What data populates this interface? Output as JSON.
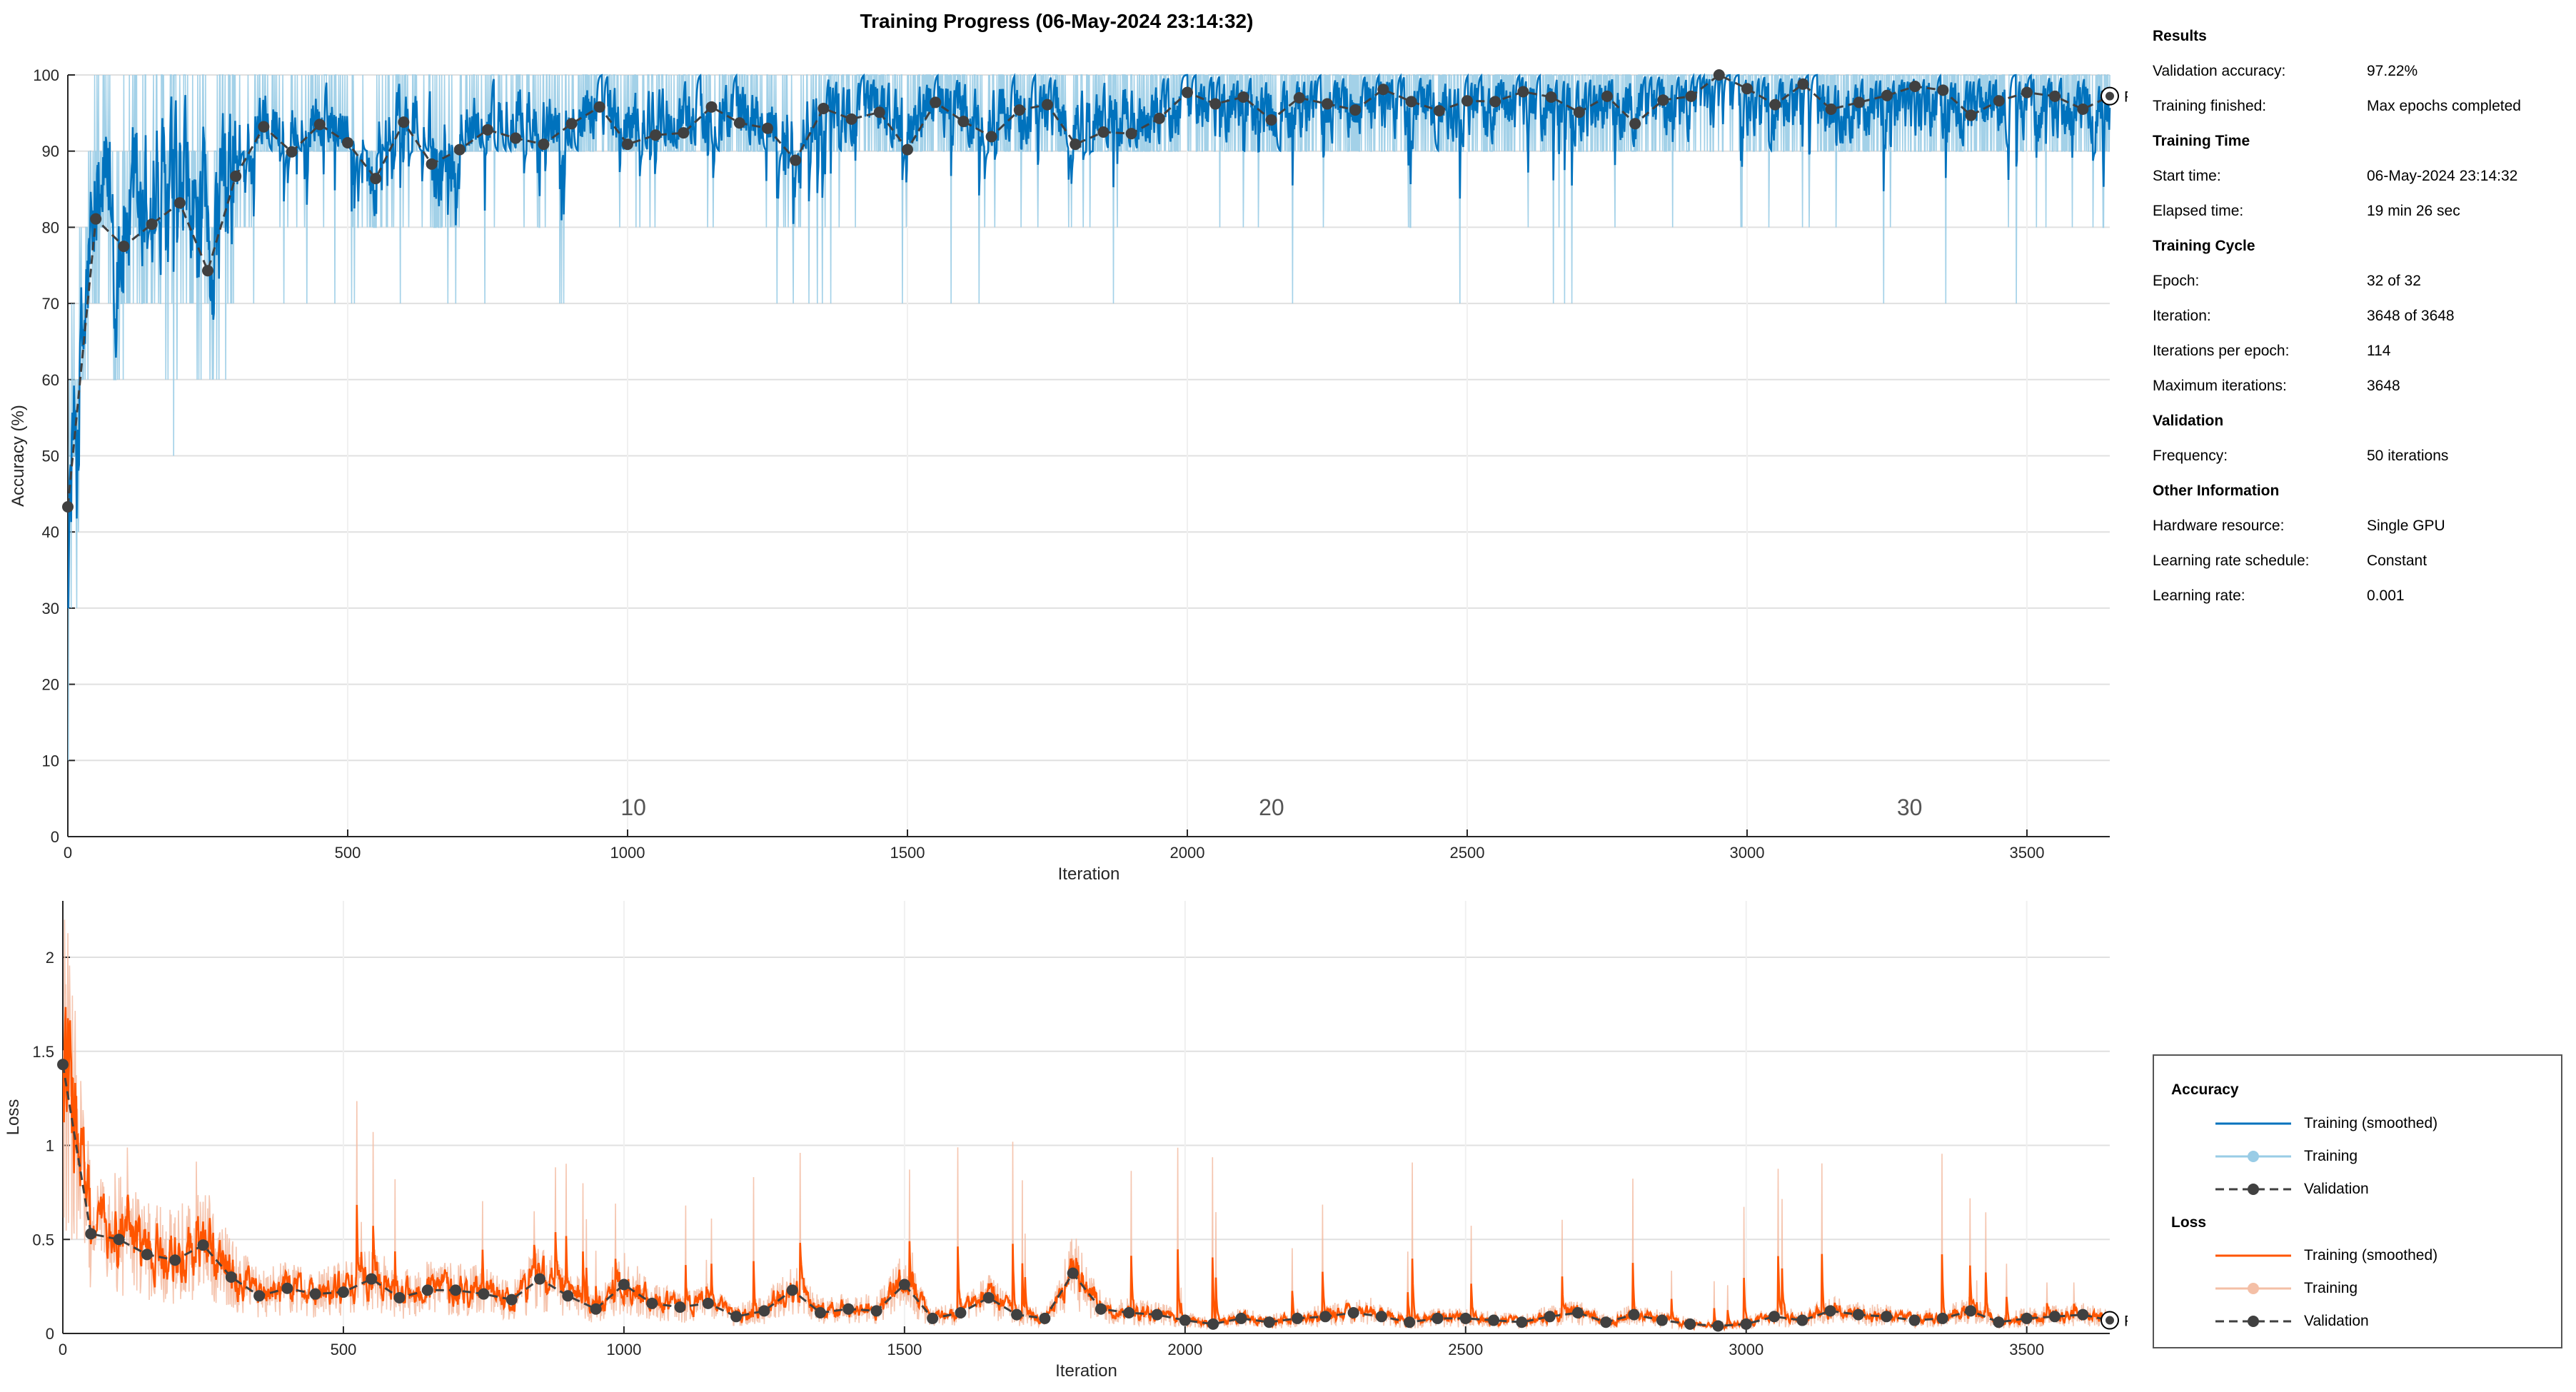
{
  "title": "Training Progress (06-May-2024 23:14:32)",
  "colors": {
    "acc_smoothed": "#0072BD",
    "acc_raw": "#99CCE6",
    "validation": "#404040",
    "loss_smoothed": "#FF5500",
    "loss_raw": "#F4BFA6"
  },
  "chart_data": [
    {
      "type": "line",
      "name": "accuracy-plot",
      "xlabel": "Iteration",
      "ylabel": "Accuracy (%)",
      "xlim": [
        0,
        3648
      ],
      "ylim": [
        0,
        100
      ],
      "xticks": [
        0,
        500,
        1000,
        1500,
        2000,
        2500,
        3000,
        3500
      ],
      "yticks": [
        0,
        10,
        20,
        30,
        40,
        50,
        60,
        70,
        80,
        90,
        100
      ],
      "grid": true,
      "epoch_labels": [
        {
          "epoch": "10",
          "x": 1026
        },
        {
          "epoch": "20",
          "x": 2166
        },
        {
          "epoch": "30",
          "x": 3306
        }
      ],
      "final_label": "Final",
      "final_value": 97.22,
      "validation": {
        "name": "Validation",
        "x": [
          0,
          50,
          100,
          150,
          200,
          250,
          300,
          350,
          400,
          450,
          500,
          550,
          600,
          650,
          700,
          750,
          800,
          850,
          900,
          950,
          1000,
          1050,
          1100,
          1150,
          1200,
          1250,
          1300,
          1350,
          1400,
          1450,
          1500,
          1550,
          1600,
          1650,
          1700,
          1750,
          1800,
          1850,
          1900,
          1950,
          2000,
          2050,
          2100,
          2150,
          2200,
          2250,
          2300,
          2350,
          2400,
          2450,
          2500,
          2550,
          2600,
          2650,
          2700,
          2750,
          2800,
          2850,
          2900,
          2950,
          3000,
          3050,
          3100,
          3150,
          3200,
          3250,
          3300,
          3350,
          3400,
          3450,
          3500,
          3550,
          3600,
          3648
        ],
        "y": [
          43.3,
          81.1,
          77.5,
          80.4,
          83.2,
          74.3,
          86.7,
          93.2,
          89.9,
          93.5,
          91.1,
          86.4,
          93.8,
          88.3,
          90.2,
          92.8,
          91.7,
          90.9,
          93.6,
          95.8,
          90.9,
          92.1,
          92.4,
          95.8,
          93.7,
          93.0,
          88.8,
          95.6,
          94.2,
          95.1,
          90.2,
          96.4,
          93.9,
          91.9,
          95.4,
          96.1,
          90.9,
          92.5,
          92.3,
          94.3,
          97.7,
          96.2,
          97.1,
          94.1,
          97.0,
          96.2,
          95.4,
          98.1,
          96.5,
          95.3,
          96.6,
          96.5,
          97.8,
          97.1,
          95.1,
          97.2,
          93.6,
          96.7,
          97.2,
          100.0,
          98.2,
          96.1,
          98.8,
          95.5,
          96.4,
          97.3,
          98.5,
          98.0,
          94.7,
          96.6,
          97.7,
          97.2,
          95.5,
          97.22
        ]
      }
    },
    {
      "type": "line",
      "name": "loss-plot",
      "xlabel": "Iteration",
      "ylabel": "Loss",
      "xlim": [
        0,
        3648
      ],
      "ylim": [
        0,
        2.3
      ],
      "xticks": [
        0,
        500,
        1000,
        1500,
        2000,
        2500,
        3000,
        3500
      ],
      "yticks": [
        0,
        0.5,
        1,
        1.5,
        2
      ],
      "grid": true,
      "final_label": "Final",
      "final_value": 0.07,
      "validation": {
        "name": "Validation",
        "x": [
          0,
          50,
          100,
          150,
          200,
          250,
          300,
          350,
          400,
          450,
          500,
          550,
          600,
          650,
          700,
          750,
          800,
          850,
          900,
          950,
          1000,
          1050,
          1100,
          1150,
          1200,
          1250,
          1300,
          1350,
          1400,
          1450,
          1500,
          1550,
          1600,
          1650,
          1700,
          1750,
          1800,
          1850,
          1900,
          1950,
          2000,
          2050,
          2100,
          2150,
          2200,
          2250,
          2300,
          2350,
          2400,
          2450,
          2500,
          2550,
          2600,
          2650,
          2700,
          2750,
          2800,
          2850,
          2900,
          2950,
          3000,
          3050,
          3100,
          3150,
          3200,
          3250,
          3300,
          3350,
          3400,
          3450,
          3500,
          3550,
          3600,
          3648
        ],
        "y": [
          1.43,
          0.53,
          0.5,
          0.42,
          0.39,
          0.47,
          0.3,
          0.2,
          0.24,
          0.21,
          0.22,
          0.29,
          0.19,
          0.23,
          0.23,
          0.21,
          0.18,
          0.29,
          0.2,
          0.13,
          0.26,
          0.16,
          0.14,
          0.16,
          0.09,
          0.12,
          0.23,
          0.11,
          0.13,
          0.12,
          0.26,
          0.08,
          0.11,
          0.19,
          0.1,
          0.08,
          0.32,
          0.13,
          0.11,
          0.1,
          0.07,
          0.05,
          0.08,
          0.06,
          0.08,
          0.09,
          0.11,
          0.09,
          0.06,
          0.08,
          0.08,
          0.07,
          0.06,
          0.09,
          0.11,
          0.06,
          0.1,
          0.07,
          0.05,
          0.04,
          0.05,
          0.09,
          0.07,
          0.12,
          0.1,
          0.09,
          0.07,
          0.08,
          0.12,
          0.06,
          0.08,
          0.09,
          0.1,
          0.07
        ]
      }
    }
  ],
  "info": {
    "results_title": "Results",
    "val_acc_label": "Validation accuracy:",
    "val_acc_value": "97.22%",
    "finished_label": "Training finished:",
    "finished_value": "Max epochs completed",
    "time_title": "Training Time",
    "start_label": "Start time:",
    "start_value": "06-May-2024 23:14:32",
    "elapsed_label": "Elapsed time:",
    "elapsed_value": "19 min 26 sec",
    "cycle_title": "Training Cycle",
    "epoch_label": "Epoch:",
    "epoch_value": "32 of 32",
    "iter_label": "Iteration:",
    "iter_value": "3648 of 3648",
    "ipe_label": "Iterations per epoch:",
    "ipe_value": "114",
    "maxiter_label": "Maximum iterations:",
    "maxiter_value": "3648",
    "validation_title": "Validation",
    "freq_label": "Frequency:",
    "freq_value": "50 iterations",
    "other_title": "Other Information",
    "hw_label": "Hardware resource:",
    "hw_value": "Single GPU",
    "lrs_label": "Learning rate schedule:",
    "lrs_value": "Constant",
    "lr_label": "Learning rate:",
    "lr_value": "0.001"
  },
  "legend": {
    "accuracy_title": "Accuracy",
    "loss_title": "Loss",
    "acc_smoothed": "Training (smoothed)",
    "acc_raw": "Training",
    "acc_val": "Validation",
    "loss_smoothed": "Training (smoothed)",
    "loss_raw": "Training",
    "loss_val": "Validation"
  }
}
